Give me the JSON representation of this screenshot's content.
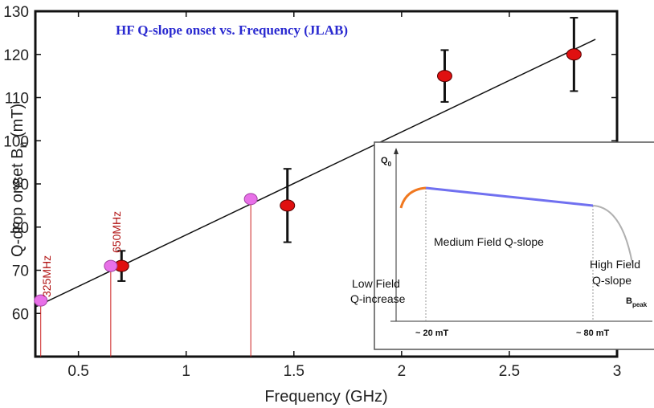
{
  "chart_data": {
    "type": "scatter",
    "title": "HF Q-slope onset vs. Frequency (JLAB)",
    "xlabel": "Frequency (GHz)",
    "ylabel": "Q-drop onset B",
    "ylabel_sub": "n",
    "ylabel_unit": " (mT)",
    "xlim": [
      0.3,
      3.0
    ],
    "ylim": [
      50,
      130
    ],
    "xticks": [
      0.5,
      1,
      1.5,
      2,
      2.5,
      3
    ],
    "xtick_labels": [
      "0.5",
      "1",
      "1.5",
      "2",
      "2.5",
      "3"
    ],
    "yticks": [
      60,
      70,
      80,
      90,
      100,
      110,
      120,
      130
    ],
    "ytick_labels": [
      "60",
      "70",
      "80",
      "90",
      "100",
      "110",
      "120",
      "130"
    ],
    "grid": false,
    "measured": {
      "x": [
        0.7,
        1.47,
        2.2,
        2.8
      ],
      "y": [
        71,
        85,
        115,
        120
      ],
      "yerr_low": [
        3.5,
        8.5,
        6,
        8.5
      ],
      "yerr_high": [
        3.5,
        8.5,
        6,
        8.5
      ],
      "color": "#e01010"
    },
    "predicted": {
      "x": [
        0.325,
        0.65,
        1.3
      ],
      "y": [
        63,
        71,
        86.5
      ],
      "labels": [
        "325MHz",
        "650MHz",
        ""
      ],
      "color": "#e870e8"
    },
    "fit_line": {
      "x": [
        0.3,
        2.9
      ],
      "y": [
        61.5,
        123.5
      ]
    },
    "inset": {
      "ylabel": "Q",
      "ylabel_sub": "0",
      "xlabel": "B",
      "xlabel_sub": "peak",
      "tick_labels": [
        "~ 20 mT",
        "~ 80 mT"
      ],
      "regions": [
        "Low Field",
        "Q-increase",
        "Medium Field Q-slope",
        "High Field",
        "Q-slope"
      ],
      "colors": {
        "low": "#f07820",
        "medium": "#7070f0",
        "high": "#b0b0b0"
      }
    }
  }
}
